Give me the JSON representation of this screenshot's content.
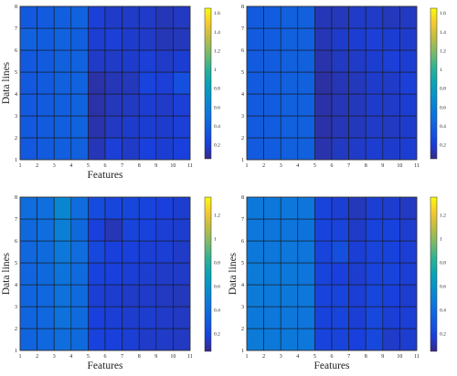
{
  "chart_data": [
    {
      "type": "heatmap",
      "xlabel": "Features",
      "ylabel": "Data lines",
      "x_ticks": [
        "1",
        "2",
        "3",
        "4",
        "5",
        "6",
        "7",
        "8",
        "9",
        "10",
        "11"
      ],
      "y_ticks": [
        "1",
        "2",
        "3",
        "4",
        "5",
        "6",
        "7",
        "8"
      ],
      "xlim": [
        1,
        11
      ],
      "ylim": [
        1,
        8
      ],
      "colorbar": {
        "ticks": [
          "0.2",
          "0.4",
          "0.6",
          "0.8",
          "1",
          "1.2",
          "1.4",
          "1.6"
        ],
        "max": 1.65
      },
      "values": [
        [
          0.36,
          0.37,
          0.39,
          0.4,
          0.14,
          0.2,
          0.17,
          0.21,
          0.19,
          0.21
        ],
        [
          0.36,
          0.37,
          0.39,
          0.41,
          0.12,
          0.16,
          0.18,
          0.19,
          0.18,
          0.2
        ],
        [
          0.36,
          0.37,
          0.39,
          0.41,
          0.11,
          0.15,
          0.16,
          0.19,
          0.17,
          0.2
        ],
        [
          0.36,
          0.37,
          0.4,
          0.41,
          0.11,
          0.14,
          0.15,
          0.23,
          0.2,
          0.3
        ],
        [
          0.36,
          0.37,
          0.4,
          0.41,
          0.17,
          0.17,
          0.18,
          0.2,
          0.17,
          0.19
        ],
        [
          0.41,
          0.38,
          0.41,
          0.39,
          0.19,
          0.2,
          0.18,
          0.17,
          0.14,
          0.15
        ],
        [
          0.36,
          0.37,
          0.39,
          0.41,
          0.2,
          0.17,
          0.17,
          0.17,
          0.14,
          0.16
        ]
      ]
    },
    {
      "type": "heatmap",
      "xlabel": "",
      "ylabel": "",
      "x_ticks": [
        "1",
        "2",
        "3",
        "4",
        "5",
        "6",
        "7",
        "8",
        "9",
        "10",
        "11"
      ],
      "y_ticks": [
        "1",
        "2",
        "3",
        "4",
        "5",
        "6",
        "7",
        "8"
      ],
      "xlim": [
        1,
        11
      ],
      "ylim": [
        1,
        8
      ],
      "colorbar": {
        "ticks": [
          "0.2",
          "0.4",
          "0.6",
          "0.8",
          "1",
          "1.2",
          "1.4",
          "1.6"
        ],
        "max": 1.65
      },
      "values": [
        [
          0.37,
          0.38,
          0.4,
          0.4,
          0.12,
          0.16,
          0.17,
          0.19,
          0.18,
          0.19
        ],
        [
          0.37,
          0.38,
          0.4,
          0.4,
          0.11,
          0.14,
          0.15,
          0.17,
          0.16,
          0.18
        ],
        [
          0.37,
          0.38,
          0.4,
          0.4,
          0.11,
          0.14,
          0.15,
          0.18,
          0.17,
          0.19
        ],
        [
          0.37,
          0.38,
          0.4,
          0.4,
          0.1,
          0.14,
          0.15,
          0.18,
          0.17,
          0.2
        ],
        [
          0.37,
          0.38,
          0.4,
          0.4,
          0.12,
          0.16,
          0.17,
          0.19,
          0.2,
          0.19
        ],
        [
          0.37,
          0.38,
          0.4,
          0.4,
          0.14,
          0.18,
          0.19,
          0.2,
          0.19,
          0.18
        ],
        [
          0.37,
          0.38,
          0.4,
          0.4,
          0.14,
          0.15,
          0.17,
          0.17,
          0.15,
          0.16
        ]
      ]
    },
    {
      "type": "heatmap",
      "xlabel": "Features",
      "ylabel": "Data lines",
      "x_ticks": [
        "1",
        "2",
        "3",
        "4",
        "5",
        "6",
        "7",
        "8",
        "9",
        "10",
        "11"
      ],
      "y_ticks": [
        "1",
        "2",
        "3",
        "4",
        "5",
        "6",
        "7",
        "8"
      ],
      "xlim": [
        1,
        11
      ],
      "ylim": [
        1,
        8
      ],
      "colorbar": {
        "ticks": [
          "0.2",
          "0.4",
          "0.6",
          "0.8",
          "1",
          "1.2"
        ],
        "max": 1.35
      },
      "values": [
        [
          0.36,
          0.37,
          0.4,
          0.39,
          0.19,
          0.18,
          0.17,
          0.15,
          0.15,
          0.14
        ],
        [
          0.36,
          0.37,
          0.42,
          0.39,
          0.18,
          0.17,
          0.16,
          0.16,
          0.15,
          0.14
        ],
        [
          0.36,
          0.37,
          0.42,
          0.39,
          0.17,
          0.16,
          0.15,
          0.15,
          0.14,
          0.13
        ],
        [
          0.36,
          0.38,
          0.43,
          0.39,
          0.19,
          0.18,
          0.17,
          0.16,
          0.15,
          0.15
        ],
        [
          0.37,
          0.39,
          0.46,
          0.4,
          0.22,
          0.18,
          0.18,
          0.17,
          0.17,
          0.15
        ],
        [
          0.38,
          0.4,
          0.49,
          0.38,
          0.18,
          0.12,
          0.2,
          0.19,
          0.17,
          0.16
        ],
        [
          0.4,
          0.41,
          0.53,
          0.4,
          0.24,
          0.21,
          0.21,
          0.2,
          0.18,
          0.16
        ]
      ]
    },
    {
      "type": "heatmap",
      "xlabel": "Features",
      "ylabel": "Data lines",
      "x_ticks": [
        "1",
        "2",
        "3",
        "4",
        "5",
        "6",
        "7",
        "8",
        "9",
        "10",
        "11"
      ],
      "y_ticks": [
        "1",
        "2",
        "3",
        "4",
        "5",
        "6",
        "7",
        "8"
      ],
      "xlim": [
        1,
        11
      ],
      "ylim": [
        1,
        8
      ],
      "colorbar": {
        "ticks": [
          "0.2",
          "0.4",
          "0.6",
          "0.8",
          "1",
          "1.2"
        ],
        "max": 1.35
      },
      "values": [
        [
          0.47,
          0.46,
          0.46,
          0.45,
          0.2,
          0.2,
          0.18,
          0.22,
          0.15,
          0.16
        ],
        [
          0.46,
          0.45,
          0.45,
          0.44,
          0.19,
          0.2,
          0.17,
          0.22,
          0.17,
          0.17
        ],
        [
          0.47,
          0.46,
          0.46,
          0.45,
          0.2,
          0.2,
          0.17,
          0.21,
          0.18,
          0.16
        ],
        [
          0.47,
          0.46,
          0.46,
          0.44,
          0.2,
          0.18,
          0.16,
          0.2,
          0.2,
          0.17
        ],
        [
          0.46,
          0.45,
          0.45,
          0.44,
          0.2,
          0.25,
          0.17,
          0.2,
          0.19,
          0.17
        ],
        [
          0.45,
          0.44,
          0.44,
          0.43,
          0.2,
          0.2,
          0.15,
          0.19,
          0.19,
          0.16
        ],
        [
          0.46,
          0.45,
          0.45,
          0.44,
          0.2,
          0.17,
          0.13,
          0.17,
          0.16,
          0.14
        ]
      ]
    }
  ]
}
